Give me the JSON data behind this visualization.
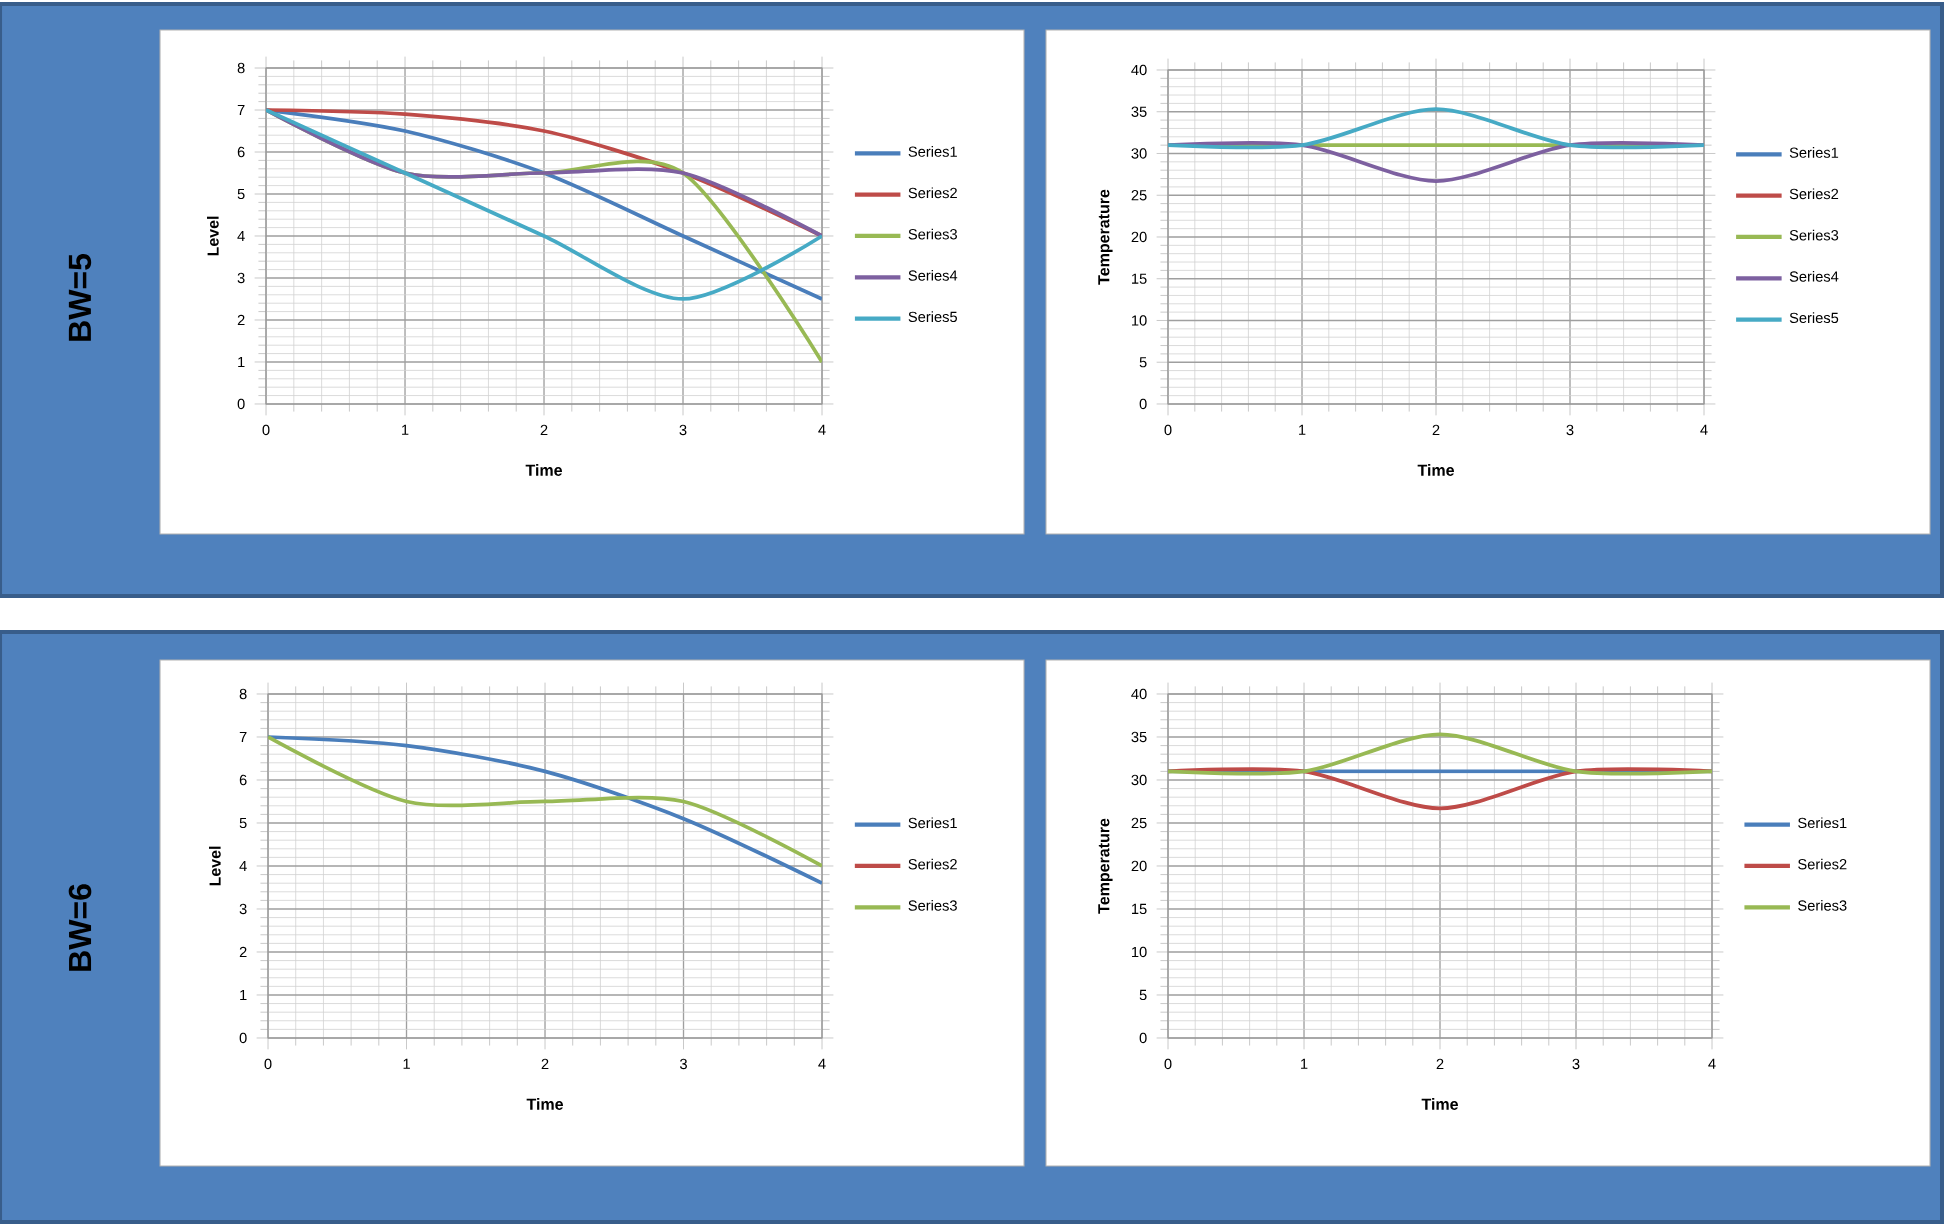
{
  "chart_data": [
    {
      "type": "line",
      "annotations": [
        "BW=5"
      ],
      "xlabel": "Time",
      "ylabel": "Level",
      "x": [
        0,
        1,
        2,
        3,
        4
      ],
      "xlim": [
        0,
        4
      ],
      "xticks": [
        0,
        1,
        2,
        3,
        4
      ],
      "ylim": [
        0,
        8
      ],
      "yticks": [
        0,
        1,
        2,
        3,
        4,
        5,
        6,
        7,
        8
      ],
      "grid": true,
      "legend": "right",
      "series": [
        {
          "name": "Series1",
          "color": "#4a7ebb",
          "values": [
            7,
            6.5,
            5.5,
            4,
            2.5
          ]
        },
        {
          "name": "Series2",
          "color": "#be4b48",
          "values": [
            7,
            6.9,
            6.5,
            5.5,
            4
          ]
        },
        {
          "name": "Series3",
          "color": "#98b954",
          "values": [
            7,
            5.5,
            5.5,
            5.5,
            1
          ]
        },
        {
          "name": "Series4",
          "color": "#7d60a0",
          "values": [
            7,
            5.5,
            5.5,
            5.5,
            4
          ]
        },
        {
          "name": "Series5",
          "color": "#46aac5",
          "values": [
            7,
            5.5,
            4,
            2.5,
            4
          ]
        }
      ]
    },
    {
      "type": "line",
      "xlabel": "Time",
      "ylabel": "Temperature",
      "x": [
        0,
        1,
        2,
        3,
        4
      ],
      "xlim": [
        0,
        4
      ],
      "xticks": [
        0,
        1,
        2,
        3,
        4
      ],
      "ylim": [
        0,
        40
      ],
      "yticks": [
        0,
        5,
        10,
        15,
        20,
        25,
        30,
        35,
        40
      ],
      "grid": true,
      "legend": "right",
      "series": [
        {
          "name": "Series1",
          "color": "#4a7ebb",
          "values": [
            null,
            null,
            null,
            null,
            null
          ]
        },
        {
          "name": "Series2",
          "color": "#be4b48",
          "values": [
            null,
            null,
            null,
            null,
            null
          ]
        },
        {
          "name": "Series3",
          "color": "#98b954",
          "values": [
            31,
            31,
            31,
            31,
            31
          ]
        },
        {
          "name": "Series4",
          "color": "#7d60a0",
          "values": [
            31,
            31,
            26.7,
            31,
            31
          ]
        },
        {
          "name": "Series5",
          "color": "#46aac5",
          "values": [
            31,
            31,
            35.3,
            31,
            31
          ]
        }
      ]
    },
    {
      "type": "line",
      "annotations": [
        "BW=6"
      ],
      "xlabel": "Time",
      "ylabel": "Level",
      "x": [
        0,
        1,
        2,
        3,
        4
      ],
      "xlim": [
        0,
        4
      ],
      "xticks": [
        0,
        1,
        2,
        3,
        4
      ],
      "ylim": [
        0,
        8
      ],
      "yticks": [
        0,
        1,
        2,
        3,
        4,
        5,
        6,
        7,
        8
      ],
      "grid": true,
      "legend": "right",
      "series": [
        {
          "name": "Series1",
          "color": "#4a7ebb",
          "values": [
            7,
            6.8,
            6.2,
            5.1,
            3.6
          ]
        },
        {
          "name": "Series2",
          "color": "#be4b48",
          "values": [
            null,
            null,
            null,
            null,
            null
          ]
        },
        {
          "name": "Series3",
          "color": "#98b954",
          "values": [
            7,
            5.5,
            5.5,
            5.5,
            4
          ]
        }
      ]
    },
    {
      "type": "line",
      "xlabel": "Time",
      "ylabel": "Temperature",
      "x": [
        0,
        1,
        2,
        3,
        4
      ],
      "xlim": [
        0,
        4
      ],
      "xticks": [
        0,
        1,
        2,
        3,
        4
      ],
      "ylim": [
        0,
        40
      ],
      "yticks": [
        0,
        5,
        10,
        15,
        20,
        25,
        30,
        35,
        40
      ],
      "grid": true,
      "legend": "right",
      "series": [
        {
          "name": "Series1",
          "color": "#4a7ebb",
          "values": [
            31,
            31,
            31,
            31,
            31
          ]
        },
        {
          "name": "Series2",
          "color": "#be4b48",
          "values": [
            31,
            31,
            26.7,
            31,
            31
          ]
        },
        {
          "name": "Series3",
          "color": "#98b954",
          "values": [
            31,
            31,
            35.3,
            31,
            31
          ]
        }
      ]
    }
  ]
}
